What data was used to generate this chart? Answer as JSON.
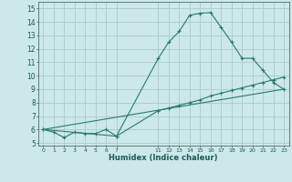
{
  "background_color": "#cce8e8",
  "grid_color": "#aacccc",
  "line_color": "#2a7a6a",
  "xlabel": "Humidex (Indice chaleur)",
  "ylim": [
    4.8,
    15.5
  ],
  "xlim": [
    -0.5,
    23.5
  ],
  "yticks": [
    5,
    6,
    7,
    8,
    9,
    10,
    11,
    12,
    13,
    14,
    15
  ],
  "xtick_positions": [
    0,
    1,
    2,
    3,
    4,
    5,
    6,
    7,
    11,
    12,
    13,
    14,
    15,
    16,
    17,
    18,
    19,
    20,
    21,
    22,
    23
  ],
  "xtick_labels": [
    "0",
    "1",
    "2",
    "3",
    "4",
    "5",
    "6",
    "7",
    "11",
    "12",
    "13",
    "14",
    "15",
    "16",
    "17",
    "18",
    "19",
    "20",
    "21",
    "22",
    "23"
  ],
  "line1_x": [
    0,
    1,
    2,
    3,
    4,
    5,
    6,
    7,
    11,
    12,
    13,
    14,
    15,
    16,
    17,
    18,
    19,
    20,
    21,
    22,
    23
  ],
  "line1_y": [
    6.0,
    5.8,
    5.4,
    5.8,
    5.7,
    5.7,
    6.0,
    5.5,
    11.3,
    12.5,
    13.3,
    14.5,
    14.65,
    14.7,
    13.6,
    12.5,
    11.3,
    11.3,
    10.4,
    9.5,
    9.0
  ],
  "line2_x": [
    0,
    7,
    11,
    12,
    13,
    14,
    15,
    16,
    17,
    18,
    19,
    20,
    21,
    22,
    23
  ],
  "line2_y": [
    6.0,
    5.5,
    7.4,
    7.6,
    7.8,
    8.0,
    8.2,
    8.5,
    8.7,
    8.9,
    9.1,
    9.3,
    9.5,
    9.7,
    9.9
  ],
  "line3_x": [
    0,
    23
  ],
  "line3_y": [
    6.0,
    9.0
  ]
}
